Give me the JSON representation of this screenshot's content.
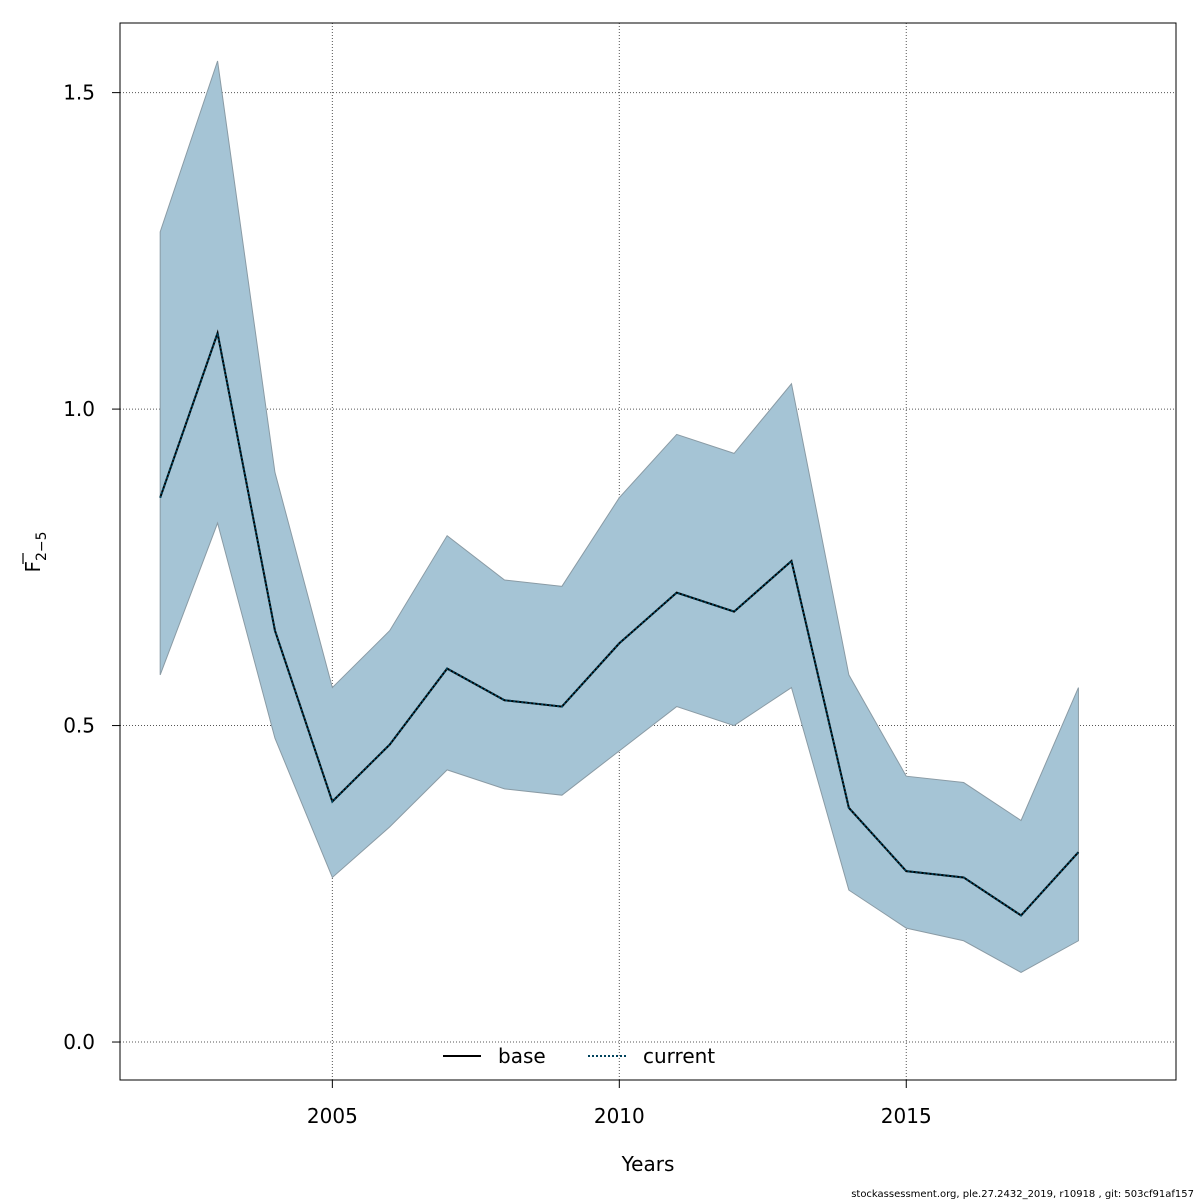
{
  "chart_data": {
    "type": "area",
    "xlabel": "Years",
    "ylabel_main": "F",
    "ylabel_sub": "2−5",
    "xlim": [
      2001.3,
      2019.7
    ],
    "ylim": [
      -0.06,
      1.61
    ],
    "xticks": [
      2005,
      2010,
      2015
    ],
    "xtick_labels": [
      "2005",
      "2010",
      "2015"
    ],
    "yticks": [
      0.0,
      0.5,
      1.0,
      1.5
    ],
    "ytick_labels": [
      "0.0",
      "0.5",
      "1.0",
      "1.5"
    ],
    "grid": true,
    "band_color": "#a5c4d5",
    "band_edge_color": "#8a9ba5",
    "x": [
      2002,
      2003,
      2004,
      2005,
      2006,
      2007,
      2008,
      2009,
      2010,
      2011,
      2012,
      2013,
      2014,
      2015,
      2016,
      2017,
      2018
    ],
    "upper": [
      1.28,
      1.55,
      0.9,
      0.56,
      0.65,
      0.8,
      0.73,
      0.72,
      0.86,
      0.96,
      0.93,
      1.04,
      0.58,
      0.42,
      0.41,
      0.35,
      0.56
    ],
    "lower": [
      0.58,
      0.82,
      0.48,
      0.26,
      0.34,
      0.43,
      0.4,
      0.39,
      0.46,
      0.53,
      0.5,
      0.56,
      0.24,
      0.18,
      0.16,
      0.11,
      0.16
    ],
    "series": [
      {
        "name": "base",
        "style": "solid",
        "color": "#000000",
        "values": [
          0.86,
          1.12,
          0.65,
          0.38,
          0.47,
          0.59,
          0.54,
          0.53,
          0.63,
          0.71,
          0.68,
          0.76,
          0.37,
          0.27,
          0.26,
          0.2,
          0.3
        ]
      },
      {
        "name": "current",
        "style": "dotted",
        "color": "#00435c",
        "values": [
          0.86,
          1.12,
          0.65,
          0.38,
          0.47,
          0.59,
          0.54,
          0.53,
          0.63,
          0.71,
          0.68,
          0.76,
          0.37,
          0.27,
          0.26,
          0.2,
          0.3
        ]
      }
    ],
    "legend": {
      "position": "bottom-center",
      "items": [
        "base",
        "current"
      ]
    }
  },
  "footer": "stockassessment.org, ple.27.2432_2019, r10918 , git: 503cf91af157"
}
